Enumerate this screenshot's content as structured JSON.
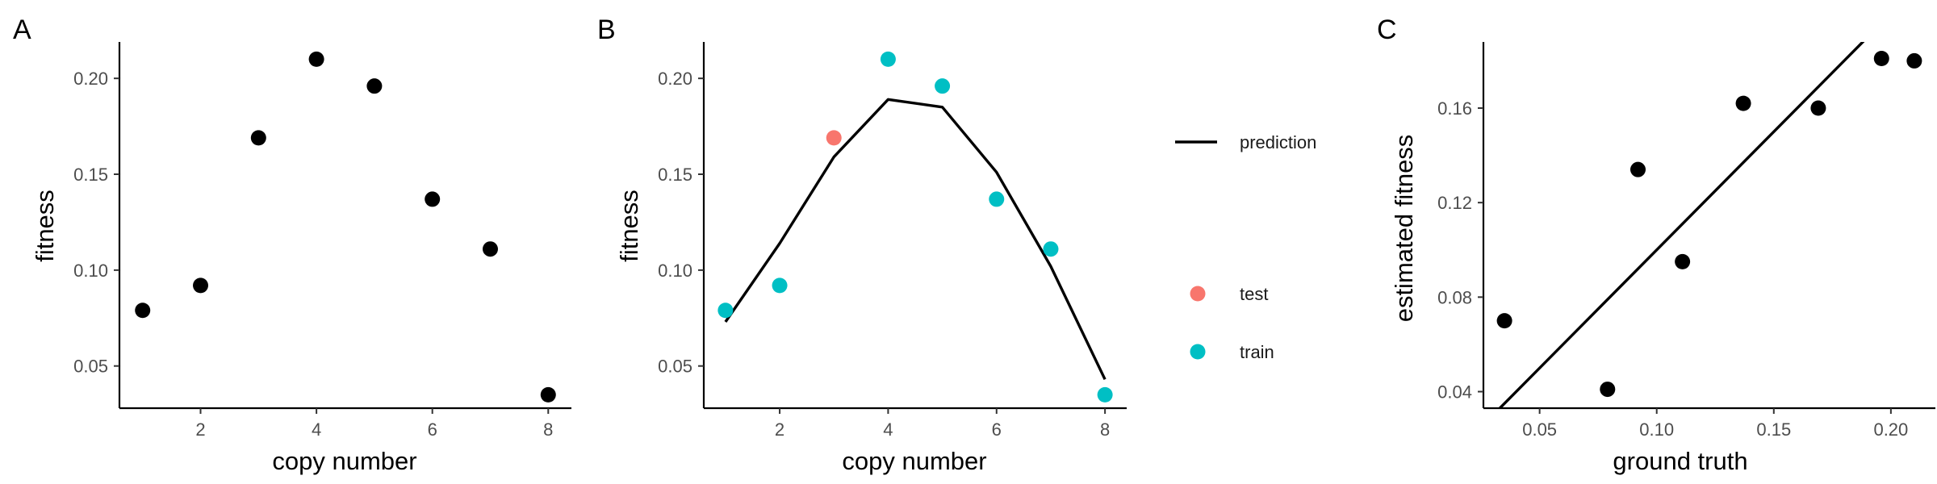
{
  "chart_data": [
    {
      "panel": "A",
      "type": "scatter",
      "xlabel": "copy number",
      "ylabel": "fitness",
      "xlim": [
        0.6,
        8.4
      ],
      "ylim": [
        0.028,
        0.219
      ],
      "xticks": [
        2,
        4,
        6,
        8
      ],
      "yticks": [
        0.05,
        0.1,
        0.15,
        0.2
      ],
      "ytick_labels": [
        "0.05",
        "0.10",
        "0.15",
        "0.20"
      ],
      "grid": false,
      "legend": null,
      "points": [
        {
          "x": 1,
          "y": 0.079
        },
        {
          "x": 2,
          "y": 0.092
        },
        {
          "x": 3,
          "y": 0.169
        },
        {
          "x": 4,
          "y": 0.21
        },
        {
          "x": 5,
          "y": 0.196
        },
        {
          "x": 6,
          "y": 0.137
        },
        {
          "x": 7,
          "y": 0.111
        },
        {
          "x": 8,
          "y": 0.035
        }
      ],
      "point_color": "#000000"
    },
    {
      "panel": "B",
      "type": "scatter",
      "xlabel": "copy number",
      "ylabel": "fitness",
      "xlim": [
        0.6,
        8.4
      ],
      "ylim": [
        0.028,
        0.219
      ],
      "xticks": [
        2,
        4,
        6,
        8
      ],
      "yticks": [
        0.05,
        0.1,
        0.15,
        0.2
      ],
      "ytick_labels": [
        "0.05",
        "0.10",
        "0.15",
        "0.20"
      ],
      "grid": false,
      "legend": "right",
      "series": [
        {
          "name": "prediction",
          "kind": "line",
          "color": "#000000",
          "points": [
            {
              "x": 1,
              "y": 0.073
            },
            {
              "x": 2,
              "y": 0.114
            },
            {
              "x": 3,
              "y": 0.159
            },
            {
              "x": 4,
              "y": 0.189
            },
            {
              "x": 5,
              "y": 0.185
            },
            {
              "x": 6,
              "y": 0.151
            },
            {
              "x": 7,
              "y": 0.102
            },
            {
              "x": 8,
              "y": 0.043
            }
          ]
        },
        {
          "name": "test",
          "kind": "point",
          "color": "#F8766D",
          "points": [
            {
              "x": 3,
              "y": 0.169
            }
          ]
        },
        {
          "name": "train",
          "kind": "point",
          "color": "#00BFC4",
          "points": [
            {
              "x": 1,
              "y": 0.079
            },
            {
              "x": 2,
              "y": 0.092
            },
            {
              "x": 4,
              "y": 0.21
            },
            {
              "x": 5,
              "y": 0.196
            },
            {
              "x": 6,
              "y": 0.137
            },
            {
              "x": 7,
              "y": 0.111
            },
            {
              "x": 8,
              "y": 0.035
            }
          ]
        }
      ]
    },
    {
      "panel": "C",
      "type": "scatter",
      "xlabel": "ground truth",
      "ylabel": "estimated fitness",
      "xlim": [
        0.026,
        0.219
      ],
      "ylim": [
        0.033,
        0.188
      ],
      "xticks": [
        0.05,
        0.1,
        0.15,
        0.2
      ],
      "xtick_labels": [
        "0.05",
        "0.10",
        "0.15",
        "0.20"
      ],
      "yticks": [
        0.04,
        0.08,
        0.12,
        0.16
      ],
      "ytick_labels": [
        "0.04",
        "0.08",
        "0.12",
        "0.16"
      ],
      "grid": false,
      "legend": null,
      "points": [
        {
          "x": 0.035,
          "y": 0.07
        },
        {
          "x": 0.079,
          "y": 0.041
        },
        {
          "x": 0.092,
          "y": 0.134
        },
        {
          "x": 0.111,
          "y": 0.095
        },
        {
          "x": 0.137,
          "y": 0.162
        },
        {
          "x": 0.169,
          "y": 0.16
        },
        {
          "x": 0.196,
          "y": 0.181
        },
        {
          "x": 0.21,
          "y": 0.18
        }
      ],
      "point_color": "#000000",
      "reference_line": {
        "slope": 1,
        "intercept": 0,
        "color": "#000000"
      }
    }
  ]
}
